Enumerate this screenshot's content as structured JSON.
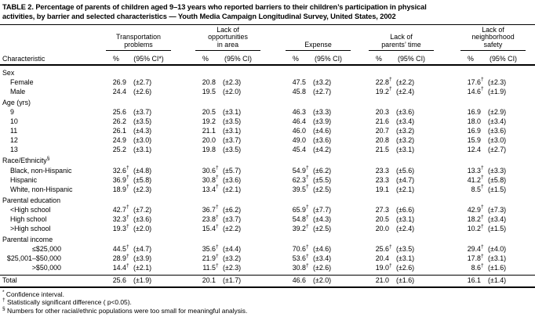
{
  "title_lines": [
    "TABLE 2. Percentage of parents of children aged 9–13 years who reported barriers to their children’s participation in physical",
    "activities, by barrier and selected characteristics — Youth Media Campaign Longitudinal Survey, United States, 2002"
  ],
  "symbols": {
    "dagger": "†"
  },
  "header": {
    "characteristic_label": "Characteristic",
    "groups": [
      {
        "lines": [
          "Transportation",
          "problems"
        ],
        "pct": "%",
        "ci": "(95% CI*)"
      },
      {
        "lines": [
          "Lack of",
          "opportunities",
          "in area"
        ],
        "pct": "%",
        "ci": "(95% CI)"
      },
      {
        "lines": [
          "Expense"
        ],
        "pct": "%",
        "ci": "(95% CI)"
      },
      {
        "lines": [
          "Lack of",
          "parents’ time"
        ],
        "pct": "%",
        "ci": "(95% CI)"
      },
      {
        "lines": [
          "Lack of",
          "neighborhood",
          "safety"
        ],
        "pct": "%",
        "ci": "(95% CI)"
      }
    ]
  },
  "rows": [
    {
      "type": "section",
      "label": "Sex"
    },
    {
      "type": "data",
      "label": "Female",
      "cells": [
        [
          "26.9",
          "(±2.7)",
          0
        ],
        [
          "20.8",
          "(±2.3)",
          0
        ],
        [
          "47.5",
          "(±3.2)",
          0
        ],
        [
          "22.8",
          "(±2.2)",
          1
        ],
        [
          "17.6",
          "(±2.3)",
          1
        ]
      ]
    },
    {
      "type": "data",
      "label": "Male",
      "cells": [
        [
          "24.4",
          "(±2.6)",
          0
        ],
        [
          "19.5",
          "(±2.0)",
          0
        ],
        [
          "45.8",
          "(±2.7)",
          0
        ],
        [
          "19.2",
          "(±2.4)",
          1
        ],
        [
          "14.6",
          "(±1.9)",
          1
        ]
      ]
    },
    {
      "type": "section",
      "label": "Age (yrs)"
    },
    {
      "type": "data",
      "label": "9",
      "cells": [
        [
          "25.6",
          "(±3.7)",
          0
        ],
        [
          "20.5",
          "(±3.1)",
          0
        ],
        [
          "46.3",
          "(±3.3)",
          0
        ],
        [
          "20.3",
          "(±3.6)",
          0
        ],
        [
          "16.9",
          "(±2.9)",
          0
        ]
      ]
    },
    {
      "type": "data",
      "label": "10",
      "cells": [
        [
          "26.2",
          "(±3.5)",
          0
        ],
        [
          "19.2",
          "(±3.5)",
          0
        ],
        [
          "46.4",
          "(±3.9)",
          0
        ],
        [
          "21.6",
          "(±3.4)",
          0
        ],
        [
          "18.0",
          "(±3.4)",
          0
        ]
      ]
    },
    {
      "type": "data",
      "label": "11",
      "cells": [
        [
          "26.1",
          "(±4.3)",
          0
        ],
        [
          "21.1",
          "(±3.1)",
          0
        ],
        [
          "46.0",
          "(±4.6)",
          0
        ],
        [
          "20.7",
          "(±3.2)",
          0
        ],
        [
          "16.9",
          "(±3.6)",
          0
        ]
      ]
    },
    {
      "type": "data",
      "label": "12",
      "cells": [
        [
          "24.9",
          "(±3.0)",
          0
        ],
        [
          "20.0",
          "(±3.7)",
          0
        ],
        [
          "49.0",
          "(±3.6)",
          0
        ],
        [
          "20.8",
          "(±3.2)",
          0
        ],
        [
          "15.9",
          "(±3.0)",
          0
        ]
      ]
    },
    {
      "type": "data",
      "label": "13",
      "cells": [
        [
          "25.2",
          "(±3.1)",
          0
        ],
        [
          "19.8",
          "(±3.5)",
          0
        ],
        [
          "45.4",
          "(±4.2)",
          0
        ],
        [
          "21.5",
          "(±3.1)",
          0
        ],
        [
          "12.4",
          "(±2.7)",
          0
        ]
      ]
    },
    {
      "type": "section",
      "label": "Race/Ethnicity",
      "sup": "§"
    },
    {
      "type": "data",
      "label": "Black, non-Hispanic",
      "cells": [
        [
          "32.6",
          "(±4.8)",
          1
        ],
        [
          "30.6",
          "(±5.7)",
          1
        ],
        [
          "54.9",
          "(±6.2)",
          1
        ],
        [
          "23.3",
          "(±5.6)",
          0
        ],
        [
          "13.3",
          "(±3.3)",
          1
        ]
      ]
    },
    {
      "type": "data",
      "label": "Hispanic",
      "cells": [
        [
          "36.9",
          "(±5.8)",
          1
        ],
        [
          "30.8",
          "(±3.6)",
          1
        ],
        [
          "62.3",
          "(±5.5)",
          1
        ],
        [
          "23.3",
          "(±4.7)",
          0
        ],
        [
          "41.2",
          "(±5.8)",
          1
        ]
      ]
    },
    {
      "type": "data",
      "label": "White, non-Hispanic",
      "cells": [
        [
          "18.9",
          "(±2.3)",
          1
        ],
        [
          "13.4",
          "(±2.1)",
          1
        ],
        [
          "39.5",
          "(±2.5)",
          1
        ],
        [
          "19.1",
          "(±2.1)",
          0
        ],
        [
          "8.5",
          "(±1.5)",
          1
        ]
      ]
    },
    {
      "type": "section",
      "label": "Parental education"
    },
    {
      "type": "data",
      "label": "<High school",
      "cells": [
        [
          "42.7",
          "(±7.2)",
          1
        ],
        [
          "36.7",
          "(±6.2)",
          1
        ],
        [
          "65.9",
          "(±7.7)",
          1
        ],
        [
          "27.3",
          "(±6.6)",
          0
        ],
        [
          "42.9",
          "(±7.3)",
          1
        ]
      ]
    },
    {
      "type": "data",
      "label": "High school",
      "cells": [
        [
          "32.3",
          "(±3.6)",
          1
        ],
        [
          "23.8",
          "(±3.7)",
          1
        ],
        [
          "54.8",
          "(±4.3)",
          1
        ],
        [
          "20.5",
          "(±3.1)",
          0
        ],
        [
          "18.2",
          "(±3.4)",
          1
        ]
      ]
    },
    {
      "type": "data",
      "label": ">High school",
      "cells": [
        [
          "19.3",
          "(±2.0)",
          1
        ],
        [
          "15.4",
          "(±2.2)",
          1
        ],
        [
          "39.2",
          "(±2.5)",
          1
        ],
        [
          "20.0",
          "(±2.4)",
          0
        ],
        [
          "10.2",
          "(±1.5)",
          1
        ]
      ]
    },
    {
      "type": "section",
      "label": "Parental income"
    },
    {
      "type": "data",
      "label": "≤$25,000",
      "align": "right",
      "cells": [
        [
          "44.5",
          "(±4.7)",
          1
        ],
        [
          "35.6",
          "(±4.4)",
          1
        ],
        [
          "70.6",
          "(±4.6)",
          1
        ],
        [
          "25.6",
          "(±3.5)",
          1
        ],
        [
          "29.4",
          "(±4.0)",
          1
        ]
      ]
    },
    {
      "type": "data",
      "label": "$25,001–$50,000",
      "align": "right",
      "cells": [
        [
          "28.9",
          "(±3.9)",
          1
        ],
        [
          "21.9",
          "(±3.2)",
          1
        ],
        [
          "53.6",
          "(±3.4)",
          1
        ],
        [
          "20.4",
          "(±3.1)",
          0
        ],
        [
          "17.8",
          "(±3.1)",
          1
        ]
      ]
    },
    {
      "type": "data",
      "label": ">$50,000",
      "align": "right",
      "cells": [
        [
          "14.4",
          "(±2.1)",
          1
        ],
        [
          "11.5",
          "(±2.3)",
          1
        ],
        [
          "30.8",
          "(±2.6)",
          1
        ],
        [
          "19.0",
          "(±2.6)",
          1
        ],
        [
          "8.6",
          "(±1.6)",
          1
        ]
      ]
    },
    {
      "type": "total",
      "label": "Total",
      "cells": [
        [
          "25.6",
          "(±1.9)",
          0
        ],
        [
          "20.1",
          "(±1.7)",
          0
        ],
        [
          "46.6",
          "(±2.0)",
          0
        ],
        [
          "21.0",
          "(±1.6)",
          0
        ],
        [
          "16.1",
          "(±1.4)",
          0
        ]
      ]
    }
  ],
  "footnotes": [
    {
      "marker": "*",
      "text": "Confidence interval."
    },
    {
      "marker": "†",
      "text": "Statistically significant difference ( p<0.05)."
    },
    {
      "marker": "§",
      "text": "Numbers for other racial/ethnic populations were too small for meaningful analysis."
    }
  ]
}
